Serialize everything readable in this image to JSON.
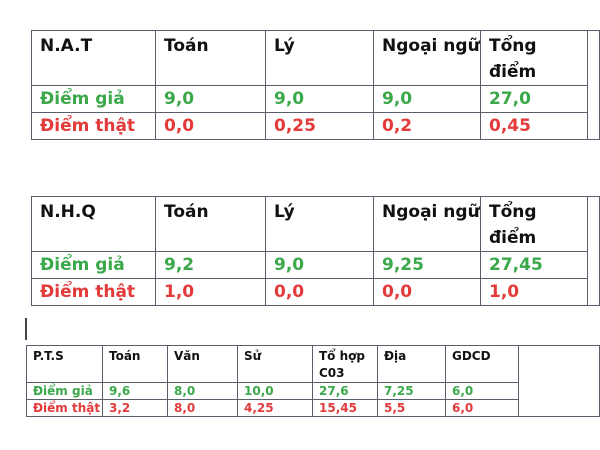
{
  "tables": [
    {
      "name": "N.A.T",
      "headers": [
        "Toán",
        "Lý",
        "Ngoại ngữ",
        "Tổng điểm"
      ],
      "rows": [
        {
          "label": "Điểm giả",
          "values": [
            "9,0",
            "9,0",
            "9,0",
            "27,0"
          ],
          "color": "#3ba84a"
        },
        {
          "label": "Điểm thật",
          "values": [
            "0,0",
            "0,25",
            "0,2",
            "0,45"
          ],
          "color": "#e33a3a"
        }
      ]
    },
    {
      "name": "N.H.Q",
      "headers": [
        "Toán",
        "Lý",
        "Ngoại ngữ",
        "Tổng điểm"
      ],
      "rows": [
        {
          "label": "Điểm giả",
          "values": [
            "9,2",
            "9,0",
            "9,25",
            "27,45"
          ],
          "color": "#3ba84a"
        },
        {
          "label": "Điểm thật",
          "values": [
            "1,0",
            "0,0",
            "0,0",
            "1,0"
          ],
          "color": "#e33a3a"
        }
      ]
    },
    {
      "name": "P.T.S",
      "headers": [
        "Toán",
        "Văn",
        "Sử",
        "Tổ hợp C03",
        "Địa",
        "GDCD"
      ],
      "rows": [
        {
          "label": "Điểm giả",
          "values": [
            "9,6",
            "8,0",
            "10,0",
            "27,6",
            "7,25",
            "6,0"
          ],
          "color": "#3ba84a"
        },
        {
          "label": "Điểm thật",
          "values": [
            "3,2",
            "8,0",
            "4,25",
            "15,45",
            "5,5",
            "6,0"
          ],
          "color": "#e33a3a"
        }
      ]
    }
  ]
}
